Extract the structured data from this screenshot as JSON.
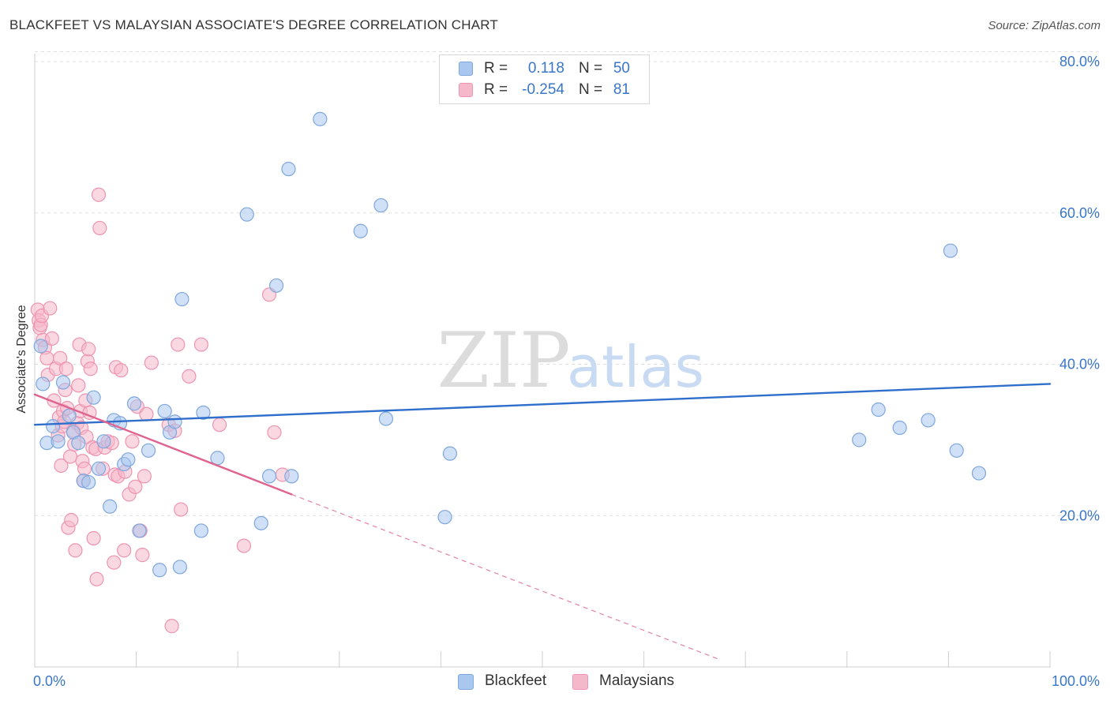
{
  "chart_data": {
    "type": "scatter",
    "title": "BLACKFEET VS MALAYSIAN ASSOCIATE'S DEGREE CORRELATION CHART",
    "source": "Source: ZipAtlas.com",
    "xlabel": "",
    "ylabel": "Associate's Degree",
    "xlim": [
      0,
      100
    ],
    "ylim": [
      0,
      80
    ],
    "x_tick_labels": [
      "0.0%",
      "100.0%"
    ],
    "y_ticks": [
      20,
      40,
      60,
      80
    ],
    "y_tick_labels": [
      "20.0%",
      "40.0%",
      "60.0%",
      "80.0%"
    ],
    "grid": true,
    "watermark": {
      "left": "ZIP",
      "right": "atlas"
    },
    "legend_position": "bottom-center",
    "stats": [
      {
        "r_label": "R =",
        "r_value": "0.118",
        "n_label": "N =",
        "n_value": "50"
      },
      {
        "r_label": "R =",
        "r_value": "-0.254",
        "n_label": "N =",
        "n_value": "81"
      }
    ],
    "series": [
      {
        "name": "Blackfeet",
        "color": "#a9c7ef",
        "stroke": "#7ea7dd",
        "trend_color": "#2f6fcb",
        "trend": {
          "x0": 0,
          "y0": 32.0,
          "x1": 100,
          "y1": 37.4,
          "dashed_to": null
        },
        "points": [
          [
            0.6,
            42.4
          ],
          [
            0.8,
            37.4
          ],
          [
            1.2,
            29.6
          ],
          [
            1.8,
            31.8
          ],
          [
            2.3,
            29.8
          ],
          [
            2.8,
            37.6
          ],
          [
            3.4,
            33.2
          ],
          [
            3.8,
            31.0
          ],
          [
            4.3,
            29.6
          ],
          [
            4.8,
            24.6
          ],
          [
            5.3,
            24.4
          ],
          [
            5.8,
            35.6
          ],
          [
            6.3,
            26.2
          ],
          [
            6.8,
            29.8
          ],
          [
            7.4,
            21.2
          ],
          [
            7.8,
            32.6
          ],
          [
            8.4,
            32.2
          ],
          [
            8.8,
            26.8
          ],
          [
            9.2,
            27.4
          ],
          [
            9.8,
            34.8
          ],
          [
            10.3,
            18.0
          ],
          [
            11.2,
            28.6
          ],
          [
            12.3,
            12.8
          ],
          [
            12.8,
            33.8
          ],
          [
            13.3,
            31.0
          ],
          [
            13.8,
            32.4
          ],
          [
            14.3,
            13.2
          ],
          [
            14.5,
            48.6
          ],
          [
            16.4,
            18.0
          ],
          [
            16.6,
            33.6
          ],
          [
            18.0,
            27.6
          ],
          [
            20.9,
            59.8
          ],
          [
            22.3,
            19.0
          ],
          [
            23.1,
            25.2
          ],
          [
            25.3,
            25.2
          ],
          [
            23.8,
            50.4
          ],
          [
            25.0,
            65.8
          ],
          [
            28.1,
            72.4
          ],
          [
            32.1,
            57.6
          ],
          [
            34.1,
            61.0
          ],
          [
            34.6,
            32.8
          ],
          [
            40.4,
            19.8
          ],
          [
            40.9,
            28.2
          ],
          [
            81.2,
            30.0
          ],
          [
            83.1,
            34.0
          ],
          [
            85.2,
            31.6
          ],
          [
            88.0,
            32.6
          ],
          [
            90.8,
            28.6
          ],
          [
            90.2,
            55.0
          ],
          [
            93.0,
            25.6
          ]
        ]
      },
      {
        "name": "Malaysians",
        "color": "#f5b8cb",
        "stroke": "#ee94b0",
        "trend_color": "#e0628f",
        "trend": {
          "x0": 0,
          "y0": 36.0,
          "x1": 25.3,
          "y1": 22.8,
          "dashed_to": {
            "x": 67.4,
            "y": 1.0
          }
        },
        "points": [
          [
            0.3,
            47.2
          ],
          [
            0.4,
            45.8
          ],
          [
            0.5,
            44.8
          ],
          [
            0.6,
            45.2
          ],
          [
            0.7,
            46.4
          ],
          [
            0.8,
            43.2
          ],
          [
            1.0,
            42.2
          ],
          [
            1.2,
            40.8
          ],
          [
            1.3,
            38.6
          ],
          [
            1.5,
            47.4
          ],
          [
            1.7,
            43.4
          ],
          [
            1.9,
            35.2
          ],
          [
            2.1,
            39.4
          ],
          [
            2.3,
            30.6
          ],
          [
            2.4,
            33.0
          ],
          [
            2.5,
            40.8
          ],
          [
            2.6,
            26.6
          ],
          [
            2.7,
            31.8
          ],
          [
            2.8,
            33.8
          ],
          [
            2.9,
            32.4
          ],
          [
            3.0,
            36.6
          ],
          [
            3.1,
            39.4
          ],
          [
            3.2,
            34.2
          ],
          [
            3.3,
            18.4
          ],
          [
            3.5,
            27.8
          ],
          [
            3.6,
            19.4
          ],
          [
            3.8,
            31.2
          ],
          [
            3.9,
            29.4
          ],
          [
            4.0,
            15.4
          ],
          [
            4.2,
            32.2
          ],
          [
            4.3,
            37.2
          ],
          [
            4.4,
            42.6
          ],
          [
            4.5,
            33.8
          ],
          [
            4.6,
            31.6
          ],
          [
            4.7,
            27.2
          ],
          [
            4.8,
            24.6
          ],
          [
            4.9,
            26.2
          ],
          [
            5.1,
            30.4
          ],
          [
            5.0,
            35.2
          ],
          [
            5.2,
            40.4
          ],
          [
            5.3,
            42.0
          ],
          [
            5.4,
            33.6
          ],
          [
            5.5,
            39.4
          ],
          [
            5.7,
            29.0
          ],
          [
            5.8,
            17.0
          ],
          [
            6.0,
            28.8
          ],
          [
            6.1,
            11.6
          ],
          [
            6.3,
            62.4
          ],
          [
            6.4,
            58.0
          ],
          [
            6.7,
            26.2
          ],
          [
            6.9,
            29.0
          ],
          [
            7.2,
            29.8
          ],
          [
            7.6,
            29.6
          ],
          [
            7.8,
            13.8
          ],
          [
            7.9,
            25.4
          ],
          [
            8.0,
            39.6
          ],
          [
            8.2,
            25.2
          ],
          [
            8.5,
            39.2
          ],
          [
            8.8,
            15.4
          ],
          [
            8.9,
            25.8
          ],
          [
            9.3,
            22.8
          ],
          [
            9.6,
            29.8
          ],
          [
            9.9,
            23.8
          ],
          [
            10.1,
            34.4
          ],
          [
            10.4,
            18.0
          ],
          [
            10.6,
            14.8
          ],
          [
            10.8,
            25.2
          ],
          [
            11.0,
            33.4
          ],
          [
            11.5,
            40.2
          ],
          [
            13.2,
            32.0
          ],
          [
            13.5,
            5.4
          ],
          [
            13.8,
            31.2
          ],
          [
            14.1,
            42.6
          ],
          [
            14.4,
            20.8
          ],
          [
            15.2,
            38.4
          ],
          [
            16.4,
            42.6
          ],
          [
            18.2,
            32.0
          ],
          [
            20.6,
            16.0
          ],
          [
            23.1,
            49.2
          ],
          [
            23.6,
            31.0
          ],
          [
            24.4,
            25.4
          ]
        ]
      }
    ]
  }
}
